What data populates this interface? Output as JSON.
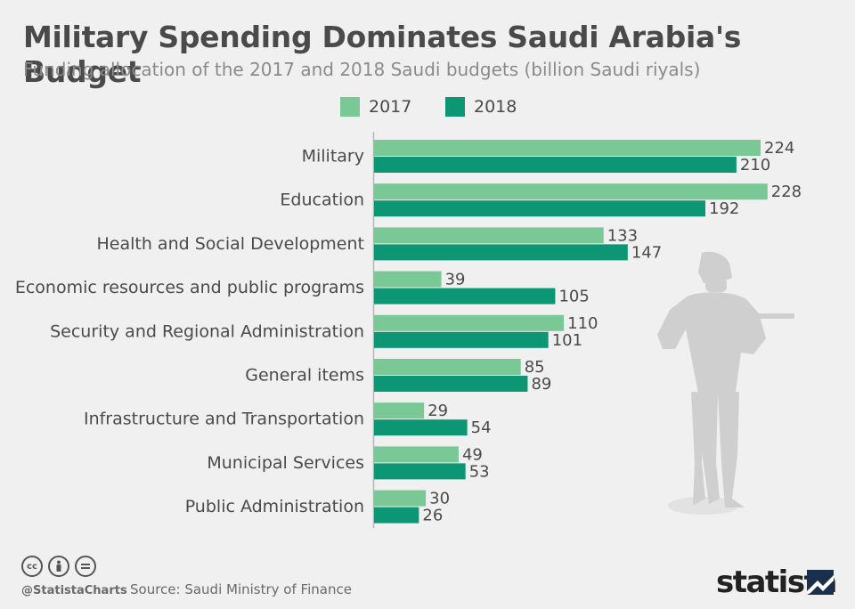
{
  "header": {
    "title": "Military Spending Dominates Saudi Arabia's Budget",
    "subtitle": "Funding allocation of the 2017 and 2018 Saudi budgets (billion Saudi riyals)"
  },
  "legend": [
    {
      "label": "2017",
      "color": "#7ac895"
    },
    {
      "label": "2018",
      "color": "#0d9673"
    }
  ],
  "chart_data": {
    "type": "bar",
    "orientation": "horizontal",
    "categories": [
      "Military",
      "Education",
      "Health and Social Development",
      "Economic resources and public programs",
      "Security and Regional Administration",
      "General items",
      "Infrastructure and Transportation",
      "Municipal Services",
      "Public Administration"
    ],
    "series": [
      {
        "name": "2017",
        "color": "#7ac895",
        "values": [
          224,
          228,
          133,
          39,
          110,
          85,
          29,
          49,
          30
        ]
      },
      {
        "name": "2018",
        "color": "#0d9673",
        "values": [
          210,
          192,
          147,
          105,
          101,
          89,
          54,
          53,
          26
        ]
      }
    ],
    "xlim": [
      0,
      240
    ],
    "data_labels": true,
    "legend_position": "top-center",
    "grid": false
  },
  "footer": {
    "handle": "@StatistaCharts",
    "source": "Source: Saudi Ministry of Finance",
    "brand": "statista",
    "license_icons": [
      "cc-icon",
      "attribution-icon",
      "no-derivatives-icon"
    ]
  },
  "decoration": {
    "silhouette": "soldier-silhouette-icon",
    "silhouette_color": "#cfcfcf"
  }
}
